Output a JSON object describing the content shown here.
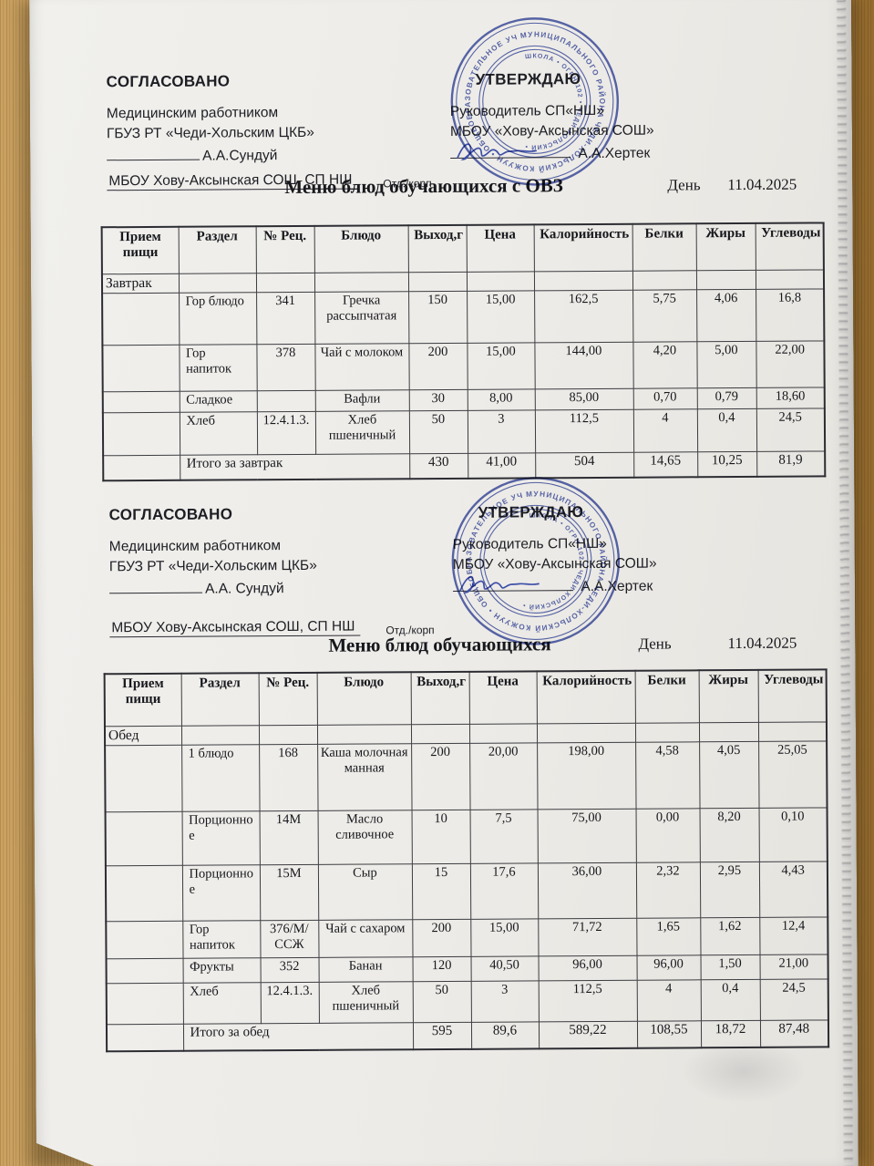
{
  "photo": {
    "paper_color": "#edebe7",
    "wood_color": "#bb8e4a",
    "stamp_color": "#3e50a8",
    "ink_color": "#1d1e24"
  },
  "sections": [
    {
      "agreed": {
        "title": "СОГЛАСОВАНО",
        "line1": "Медицинским работником",
        "line2": "ГБУЗ РТ «Чеди-Хольским ЦКБ»",
        "signatory": "А.А.Сундуй",
        "org": "МБОУ Хову-Аксынская СОШ, СП НШ",
        "dept_label": "Отд./корп"
      },
      "approve": {
        "title": "УТВЕРЖДАЮ",
        "line1": "Руководитель СП«НШ»",
        "line2": "МБОУ «Хову-Аксынская СОШ»",
        "signatory": "А.А.Хертек"
      },
      "stamp": {
        "outer_text": "МУНИЦИПАЛЬНОГО РАЙОНА ЧЕДИ-ХОЛЬСКИЙ КОЖУУН • ОБЩЕОБРАЗОВАТЕЛЬНОЕ УЧРЕЖДЕНИЕ •",
        "inner_text": "ШКОЛА • ОГРН 102 • ЧЕДИ-ХОЛЬСКИЙ •"
      },
      "menu_title": "Меню блюд обучающихся с ОВЗ",
      "day_label": "День",
      "date": "11.04.2025",
      "table": {
        "headers": [
          "Прием пищи",
          "Раздел",
          "№ Рец.",
          "Блюдо",
          "Выход,г",
          "Цена",
          "Калорийность",
          "Белки",
          "Жиры",
          "Углеводы"
        ],
        "rows": [
          {
            "type": "meal",
            "label": "Завтрак"
          },
          {
            "cells": [
              "",
              "Гор блюдо",
              "341",
              "Гречка рассыпчатая",
              "150",
              "15,00",
              "162,5",
              "5,75",
              "4,06",
              "16,8"
            ]
          },
          {
            "cells": [
              "",
              "Гор напиток",
              "378",
              "Чай с молоком",
              "200",
              "15,00",
              "144,00",
              "4,20",
              "5,00",
              "22,00"
            ]
          },
          {
            "cells": [
              "",
              "Сладкое",
              "",
              "Вафли",
              "30",
              "8,00",
              "85,00",
              "0,70",
              "0,79",
              "18,60"
            ]
          },
          {
            "cells": [
              "",
              "Хлеб",
              "12.4.1.3.",
              "Хлеб пшеничный",
              "50",
              "3",
              "112,5",
              "4",
              "0,4",
              "24,5"
            ]
          },
          {
            "type": "total",
            "label": "Итого за завтрак",
            "values": [
              "430",
              "41,00",
              "504",
              "14,65",
              "10,25",
              "81,9"
            ]
          }
        ]
      }
    },
    {
      "agreed": {
        "title": "СОГЛАСОВАНО",
        "line1": "Медицинским работником",
        "line2": "ГБУЗ РТ «Чеди-Хольским ЦКБ»",
        "signatory": "А.А. Сундуй",
        "org": "МБОУ Хову-Аксынская СОШ, СП НШ",
        "dept_label": "Отд./корп"
      },
      "approve": {
        "title": "УТВЕРЖДАЮ",
        "line1": "Руководитель СП«НШ»",
        "line2": "МБОУ «Хову-Аксынская СОШ»",
        "signatory": "А.А.Хертек"
      },
      "stamp": {
        "outer_text": "МУНИЦИПАЛЬНОГО РАЙОНА ЧЕДИ-ХОЛЬСКИЙ КОЖУУН • ОБЩЕОБРАЗОВАТЕЛЬНОЕ УЧРЕЖДЕНИЕ •",
        "inner_text": "ШКОЛА • ОГРН 102 • ЧЕДИ-ХОЛЬСКИЙ •"
      },
      "menu_title": "Меню блюд обучающихся",
      "day_label": "День",
      "date": "11.04.2025",
      "table": {
        "headers": [
          "Прием пищи",
          "Раздел",
          "№ Рец.",
          "Блюдо",
          "Выход,г",
          "Цена",
          "Калорийность",
          "Белки",
          "Жиры",
          "Углеводы"
        ],
        "rows": [
          {
            "type": "meal",
            "label": "Обед"
          },
          {
            "cells": [
              "",
              "1 блюдо",
              "168",
              "Каша молочная манная",
              "200",
              "20,00",
              "198,00",
              "4,58",
              "4,05",
              "25,05"
            ]
          },
          {
            "cells": [
              "",
              "Порционное",
              "14М",
              "Масло сливочное",
              "10",
              "7,5",
              "75,00",
              "0,00",
              "8,20",
              "0,10"
            ]
          },
          {
            "cells": [
              "",
              "Порционное",
              "15М",
              "Сыр",
              "15",
              "17,6",
              "36,00",
              "2,32",
              "2,95",
              "4,43"
            ]
          },
          {
            "cells": [
              "",
              "Гор напиток",
              "376/М/ССЖ",
              "Чай с сахаром",
              "200",
              "15,00",
              "71,72",
              "1,65",
              "1,62",
              "12,4"
            ]
          },
          {
            "cells": [
              "",
              "Фрукты",
              "352",
              "Банан",
              "120",
              "40,50",
              "96,00",
              "96,00",
              "1,50",
              "21,00"
            ]
          },
          {
            "cells": [
              "",
              "Хлеб",
              "12.4.1.3.",
              "Хлеб пшеничный",
              "50",
              "3",
              "112,5",
              "4",
              "0,4",
              "24,5"
            ]
          },
          {
            "type": "total",
            "label": "Итого за обед",
            "values": [
              "595",
              "89,6",
              "589,22",
              "108,55",
              "18,72",
              "87,48"
            ]
          }
        ]
      }
    }
  ]
}
